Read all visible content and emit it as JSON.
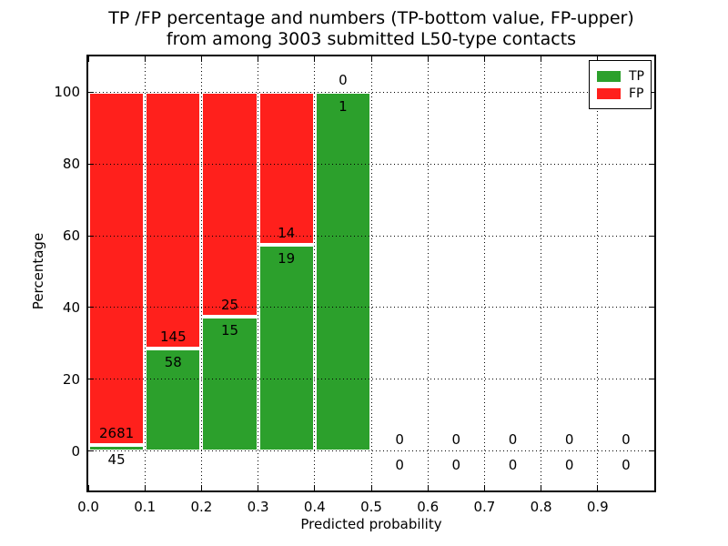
{
  "chart_data": {
    "type": "bar",
    "stacked": true,
    "title_line1": "TP /FP percentage and numbers (TP-bottom value, FP-upper)",
    "title_line2": "from among 3003 submitted L50-type contacts",
    "xlabel": "Predicted probability",
    "ylabel": "Percentage",
    "xlim": [
      0.0,
      1.0
    ],
    "ylim": [
      -11,
      110
    ],
    "grid": true,
    "xticks": [
      {
        "value": 0.0,
        "label": "0.0"
      },
      {
        "value": 0.1,
        "label": "0.1"
      },
      {
        "value": 0.2,
        "label": "0.2"
      },
      {
        "value": 0.3,
        "label": "0.3"
      },
      {
        "value": 0.4,
        "label": "0.4"
      },
      {
        "value": 0.5,
        "label": "0.5"
      },
      {
        "value": 0.6,
        "label": "0.6"
      },
      {
        "value": 0.7,
        "label": "0.7"
      },
      {
        "value": 0.8,
        "label": "0.8"
      },
      {
        "value": 0.9,
        "label": "0.9"
      }
    ],
    "yticks": [
      {
        "value": 0,
        "label": "0"
      },
      {
        "value": 20,
        "label": "20"
      },
      {
        "value": 40,
        "label": "40"
      },
      {
        "value": 60,
        "label": "60"
      },
      {
        "value": 80,
        "label": "80"
      },
      {
        "value": 100,
        "label": "100"
      }
    ],
    "categories": [
      "0.0-0.1",
      "0.1-0.2",
      "0.2-0.3",
      "0.3-0.4",
      "0.4-0.5",
      "0.5-0.6",
      "0.6-0.7",
      "0.7-0.8",
      "0.8-0.9",
      "0.9-1.0"
    ],
    "bins": [
      {
        "x0": 0.0,
        "x1": 0.1,
        "tp": 45,
        "fp": 2681
      },
      {
        "x0": 0.1,
        "x1": 0.2,
        "tp": 58,
        "fp": 145
      },
      {
        "x0": 0.2,
        "x1": 0.3,
        "tp": 15,
        "fp": 25
      },
      {
        "x0": 0.3,
        "x1": 0.4,
        "tp": 19,
        "fp": 14
      },
      {
        "x0": 0.4,
        "x1": 0.5,
        "tp": 1,
        "fp": 0
      },
      {
        "x0": 0.5,
        "x1": 0.6,
        "tp": 0,
        "fp": 0
      },
      {
        "x0": 0.6,
        "x1": 0.7,
        "tp": 0,
        "fp": 0
      },
      {
        "x0": 0.7,
        "x1": 0.8,
        "tp": 0,
        "fp": 0
      },
      {
        "x0": 0.8,
        "x1": 0.9,
        "tp": 0,
        "fp": 0
      },
      {
        "x0": 0.9,
        "x1": 1.0,
        "tp": 0,
        "fp": 0
      }
    ],
    "series": [
      {
        "name": "TP",
        "color": "#2ca02c",
        "values": [
          45,
          58,
          15,
          19,
          1,
          0,
          0,
          0,
          0,
          0
        ]
      },
      {
        "name": "FP",
        "color": "#ff201c",
        "values": [
          2681,
          145,
          25,
          14,
          0,
          0,
          0,
          0,
          0,
          0
        ]
      }
    ],
    "legend": {
      "position": "upper-right",
      "entries": [
        {
          "label": "TP",
          "color": "#2ca02c"
        },
        {
          "label": "FP",
          "color": "#ff201c"
        }
      ]
    }
  }
}
